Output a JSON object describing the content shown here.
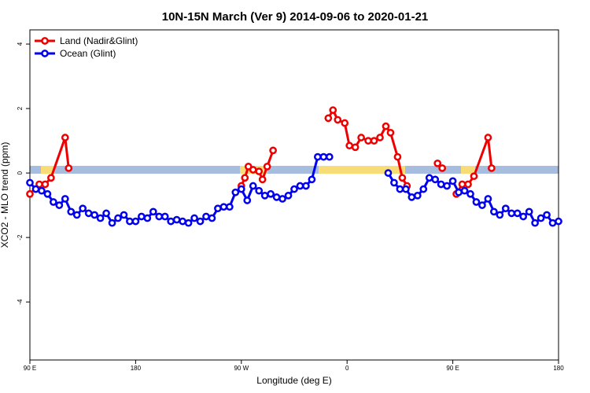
{
  "chart_data": {
    "type": "line",
    "title": "10N-15N March (Ver 9)   2014-09-06 to 2020-01-21",
    "x_label": "Longitude (deg E)",
    "y_label": "XCO2 - MLO trend (ppm)",
    "xlim": [
      90,
      540
    ],
    "ylim": [
      -5.8,
      4.44
    ],
    "xticks": [
      {
        "value": 90,
        "label": "90 E"
      },
      180,
      {
        "value": 270,
        "label": "90 W"
      },
      {
        "value": 360,
        "label": "0"
      },
      {
        "value": 450,
        "label": "90 E"
      },
      {
        "value": 540,
        "label": "180"
      }
    ],
    "yticks": [
      -4,
      -2,
      0,
      2,
      4
    ],
    "legend": "top-left",
    "series": [
      {
        "name": "Land (Nadir&Glint)",
        "color": "#ee0000",
        "x": [
          90,
          98,
          103,
          108,
          120,
          123,
          null,
          270,
          273,
          276,
          280,
          285,
          288,
          292,
          297,
          null,
          344,
          348,
          352,
          358,
          362,
          367,
          372,
          378,
          383,
          388,
          393,
          397,
          403,
          407,
          411,
          null,
          437,
          441,
          null,
          453,
          458,
          463,
          468,
          480,
          483
        ],
        "values": [
          -0.65,
          -0.35,
          -0.35,
          -0.15,
          1.1,
          0.15,
          null,
          -0.4,
          -0.15,
          0.2,
          0.1,
          0.05,
          -0.2,
          0.2,
          0.7,
          null,
          1.7,
          1.95,
          1.65,
          1.55,
          0.85,
          0.8,
          1.1,
          1.0,
          1.0,
          1.1,
          1.45,
          1.25,
          0.5,
          -0.15,
          -0.4,
          null,
          0.3,
          0.15,
          null,
          -0.65,
          -0.35,
          -0.35,
          -0.1,
          1.1,
          0.15
        ]
      },
      {
        "name": "Ocean (Glint)",
        "color": "#0000ee",
        "x": [
          90,
          95,
          100,
          105,
          110,
          115,
          120,
          125,
          130,
          135,
          140,
          145,
          150,
          155,
          160,
          165,
          170,
          175,
          180,
          185,
          190,
          195,
          200,
          205,
          210,
          215,
          220,
          225,
          230,
          235,
          240,
          245,
          250,
          255,
          260,
          265,
          270,
          275,
          280,
          285,
          290,
          295,
          300,
          305,
          310,
          315,
          320,
          325,
          330,
          335,
          340,
          345,
          350,
          355,
          360,
          365,
          370,
          375,
          380,
          385,
          390,
          395,
          400,
          405,
          410,
          415,
          420,
          425,
          430,
          435,
          440,
          445,
          450,
          455,
          460,
          465,
          470,
          475,
          480,
          485,
          490,
          495,
          500,
          505,
          510,
          515,
          520,
          525,
          530,
          535,
          540
        ],
        "values": [
          -0.3,
          -0.5,
          -0.55,
          -0.65,
          -0.9,
          -1.0,
          -0.8,
          -1.2,
          -1.3,
          -1.1,
          -1.25,
          -1.3,
          -1.4,
          -1.25,
          -1.55,
          -1.4,
          -1.3,
          -1.5,
          -1.5,
          -1.35,
          -1.4,
          -1.2,
          -1.35,
          -1.35,
          -1.5,
          -1.45,
          -1.5,
          -1.55,
          -1.4,
          -1.5,
          -1.35,
          -1.4,
          -1.1,
          -1.05,
          -1.05,
          -0.6,
          -0.5,
          -0.85,
          -0.4,
          -0.55,
          -0.7,
          -0.65,
          -0.75,
          -0.8,
          -0.7,
          -0.5,
          -0.4,
          -0.4,
          -0.2,
          0.5,
          0.5,
          0.5,
          null,
          null,
          null,
          null,
          null,
          null,
          null,
          null,
          null,
          0.0,
          -0.3,
          -0.5,
          -0.5,
          -0.75,
          -0.7,
          -0.5,
          -0.15,
          -0.2,
          -0.35,
          -0.4,
          -0.25,
          -0.6,
          -0.55,
          -0.65,
          -0.9,
          -1.0,
          -0.8,
          -1.2,
          -1.3,
          -1.1,
          -1.25,
          -1.25,
          -1.35,
          -1.2,
          -1.55,
          -1.4,
          -1.3,
          -1.55,
          -1.5
        ]
      }
    ]
  }
}
